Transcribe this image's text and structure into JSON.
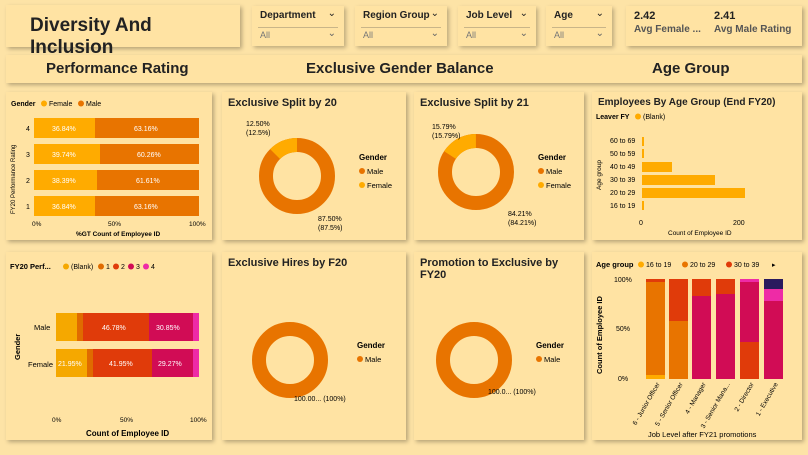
{
  "title": "Diversity And Inclusion",
  "slicers": [
    {
      "label": "Department",
      "value": "All"
    },
    {
      "label": "Region Group",
      "value": "All"
    },
    {
      "label": "Job Level",
      "value": "All"
    },
    {
      "label": "Age",
      "value": "All"
    }
  ],
  "kpis": [
    {
      "value": "2.42",
      "label": "Avg Female ..."
    },
    {
      "value": "2.41",
      "label": "Avg Male Rating"
    }
  ],
  "sections": [
    "Performance Rating",
    "Exclusive Gender Balance",
    "Age Group"
  ],
  "colors": {
    "female": "#ffab00",
    "male": "#e87400",
    "blank": "#f5a800",
    "r1": "#e06b00",
    "r2": "#e03b0a",
    "r3": "#d10c55",
    "r4": "#ee2ba6"
  },
  "perf_rating": {
    "legend_title": "Gender",
    "legend": [
      "Female",
      "Male"
    ],
    "y_axis_label": "FY20 Performance Rating",
    "x_axis_label": "%GT Count of Employee ID",
    "x_ticks": [
      "0%",
      "50%",
      "100%"
    ],
    "rows": [
      {
        "cat": "4",
        "female": "36.84%",
        "male": "63.16%"
      },
      {
        "cat": "3",
        "female": "39.74%",
        "male": "60.26%"
      },
      {
        "cat": "2",
        "female": "38.39%",
        "male": "61.61%"
      },
      {
        "cat": "1",
        "female": "36.84%",
        "male": "63.16%"
      }
    ]
  },
  "perf_gender": {
    "legend_title": "FY20 Perf...",
    "legend": [
      "(Blank)",
      "1",
      "2",
      "3",
      "4"
    ],
    "y_axis_label": "Gender",
    "x_axis_label": "Count of Employee ID",
    "x_ticks": [
      "0%",
      "50%",
      "100%"
    ],
    "rows": [
      {
        "cat": "Male",
        "labels": [
          "46.78%",
          "30.85%"
        ]
      },
      {
        "cat": "Female",
        "labels": [
          "21.95%",
          "41.95%",
          "29.27%"
        ]
      }
    ]
  },
  "split20": {
    "title": "Exclusive Split by 20",
    "legend_title": "Gender",
    "legend": [
      "Male",
      "Female"
    ],
    "female_lbl1": "12.50%",
    "female_lbl2": "(12.5%)",
    "male_lbl1": "87.50%",
    "male_lbl2": "(87.5%)"
  },
  "split21": {
    "title": "Exclusive Split by 21",
    "legend_title": "Gender",
    "legend": [
      "Male",
      "Female"
    ],
    "female_lbl1": "15.79%",
    "female_lbl2": "(15.79%)",
    "male_lbl1": "84.21%",
    "male_lbl2": "(84.21%)"
  },
  "hires20": {
    "title": "Exclusive Hires by F20",
    "legend_title": "Gender",
    "legend": [
      "Male"
    ],
    "lbl": "100.00... (100%)"
  },
  "promo20": {
    "title": "Promotion to Exclusive by FY20",
    "legend_title": "Gender",
    "legend": [
      "Male"
    ],
    "lbl": "100.0... (100%)"
  },
  "age_chart": {
    "title": "Employees By Age Group (End FY20)",
    "legend_title": "Leaver FY",
    "legend": [
      "(Blank)"
    ],
    "y_axis_label": "Age group",
    "x_axis_label": "Count of Employee ID",
    "x_ticks": [
      "0",
      "200"
    ],
    "categories": [
      "60 to 69",
      "50 to 59",
      "40 to 49",
      "30 to 39",
      "20 to 29",
      "16 to 19"
    ]
  },
  "job_chart": {
    "legend_title": "Age group",
    "legend": [
      "16 to 19",
      "20 to 29",
      "30 to 39"
    ],
    "y_axis_label": "Count of Employee ID",
    "x_axis_label": "Job Level after FY21 promotions",
    "y_ticks": [
      "100%",
      "50%",
      "0%"
    ],
    "categories": [
      "6 - Junior Officer",
      "5 - Senior Officer",
      "4 - Manager",
      "3 - Senior Mana...",
      "2 - Director",
      "1 - Executive"
    ]
  }
}
